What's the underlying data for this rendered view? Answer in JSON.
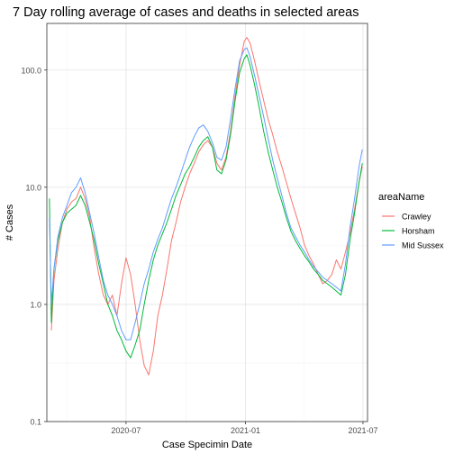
{
  "chart_data": {
    "type": "line",
    "title": "7 Day rolling average of cases and deaths in selected areas",
    "xlabel": "Case Specimin Date",
    "ylabel": "# Cases",
    "y_scale": "log10",
    "ylim": [
      0.1,
      250
    ],
    "xlim": [
      "2020-03-01",
      "2021-07-08"
    ],
    "x_ticks": [
      {
        "date": "2020-07-01",
        "label": "2020-07"
      },
      {
        "date": "2021-01-01",
        "label": "2021-01"
      },
      {
        "date": "2021-07-01",
        "label": "2021-07"
      }
    ],
    "y_ticks": [
      {
        "value": 0.1,
        "label": "0.1"
      },
      {
        "value": 1,
        "label": "1.0"
      },
      {
        "value": 10,
        "label": "10.0"
      },
      {
        "value": 100,
        "label": "100.0"
      }
    ],
    "grid": true,
    "legend": {
      "title": "areaName",
      "position": "right"
    },
    "series": [
      {
        "name": "Crawley",
        "color": "#F8766D",
        "points": [
          [
            "2020-03-08",
            0.6
          ],
          [
            "2020-03-12",
            1.6
          ],
          [
            "2020-03-18",
            3.0
          ],
          [
            "2020-03-25",
            5.0
          ],
          [
            "2020-04-01",
            6.5
          ],
          [
            "2020-04-08",
            7.5
          ],
          [
            "2020-04-15",
            8.0
          ],
          [
            "2020-04-22",
            10.0
          ],
          [
            "2020-04-29",
            8.0
          ],
          [
            "2020-05-06",
            5.5
          ],
          [
            "2020-05-13",
            3.0
          ],
          [
            "2020-05-20",
            1.8
          ],
          [
            "2020-05-27",
            1.2
          ],
          [
            "2020-06-03",
            1.0
          ],
          [
            "2020-06-10",
            1.2
          ],
          [
            "2020-06-17",
            0.8
          ],
          [
            "2020-06-24",
            1.5
          ],
          [
            "2020-07-01",
            2.5
          ],
          [
            "2020-07-08",
            1.8
          ],
          [
            "2020-07-15",
            1.0
          ],
          [
            "2020-07-22",
            0.5
          ],
          [
            "2020-07-29",
            0.3
          ],
          [
            "2020-08-05",
            0.25
          ],
          [
            "2020-08-12",
            0.4
          ],
          [
            "2020-08-19",
            0.8
          ],
          [
            "2020-08-26",
            1.2
          ],
          [
            "2020-09-02",
            2.0
          ],
          [
            "2020-09-09",
            3.5
          ],
          [
            "2020-09-16",
            5.0
          ],
          [
            "2020-09-23",
            7.5
          ],
          [
            "2020-09-30",
            10.0
          ],
          [
            "2020-10-07",
            13.0
          ],
          [
            "2020-10-14",
            16.0
          ],
          [
            "2020-10-21",
            20.0
          ],
          [
            "2020-10-28",
            23.0
          ],
          [
            "2020-11-04",
            25.0
          ],
          [
            "2020-11-11",
            22.0
          ],
          [
            "2020-11-18",
            16.0
          ],
          [
            "2020-11-25",
            14.0
          ],
          [
            "2020-12-02",
            18.0
          ],
          [
            "2020-12-09",
            30.0
          ],
          [
            "2020-12-16",
            60.0
          ],
          [
            "2020-12-23",
            110.0
          ],
          [
            "2020-12-30",
            175.0
          ],
          [
            "2021-01-03",
            190.0
          ],
          [
            "2021-01-08",
            170.0
          ],
          [
            "2021-01-15",
            120.0
          ],
          [
            "2021-01-22",
            80.0
          ],
          [
            "2021-01-29",
            55.0
          ],
          [
            "2021-02-05",
            38.0
          ],
          [
            "2021-02-12",
            28.0
          ],
          [
            "2021-02-19",
            20.0
          ],
          [
            "2021-02-26",
            15.0
          ],
          [
            "2021-03-05",
            11.0
          ],
          [
            "2021-03-12",
            8.0
          ],
          [
            "2021-03-19",
            6.0
          ],
          [
            "2021-03-26",
            4.5
          ],
          [
            "2021-04-02",
            3.2
          ],
          [
            "2021-04-09",
            2.6
          ],
          [
            "2021-04-16",
            2.2
          ],
          [
            "2021-04-23",
            1.8
          ],
          [
            "2021-04-30",
            1.5
          ],
          [
            "2021-05-07",
            1.6
          ],
          [
            "2021-05-14",
            1.8
          ],
          [
            "2021-05-21",
            2.4
          ],
          [
            "2021-05-28",
            2.0
          ],
          [
            "2021-06-04",
            2.8
          ],
          [
            "2021-06-11",
            4.0
          ],
          [
            "2021-06-18",
            6.5
          ],
          [
            "2021-06-25",
            11.0
          ],
          [
            "2021-06-30",
            15.0
          ]
        ]
      },
      {
        "name": "Horsham",
        "color": "#00BA38",
        "points": [
          [
            "2020-03-05",
            8.0
          ],
          [
            "2020-03-08",
            0.7
          ],
          [
            "2020-03-12",
            2.0
          ],
          [
            "2020-03-18",
            3.5
          ],
          [
            "2020-03-25",
            5.0
          ],
          [
            "2020-04-01",
            6.0
          ],
          [
            "2020-04-08",
            6.5
          ],
          [
            "2020-04-15",
            7.0
          ],
          [
            "2020-04-22",
            8.5
          ],
          [
            "2020-04-29",
            7.0
          ],
          [
            "2020-05-06",
            5.0
          ],
          [
            "2020-05-13",
            3.5
          ],
          [
            "2020-05-20",
            2.2
          ],
          [
            "2020-05-27",
            1.5
          ],
          [
            "2020-06-03",
            1.0
          ],
          [
            "2020-06-10",
            0.8
          ],
          [
            "2020-06-17",
            0.6
          ],
          [
            "2020-06-24",
            0.5
          ],
          [
            "2020-07-01",
            0.4
          ],
          [
            "2020-07-08",
            0.35
          ],
          [
            "2020-07-15",
            0.45
          ],
          [
            "2020-07-22",
            0.6
          ],
          [
            "2020-07-29",
            1.0
          ],
          [
            "2020-08-05",
            1.6
          ],
          [
            "2020-08-12",
            2.4
          ],
          [
            "2020-08-19",
            3.2
          ],
          [
            "2020-08-26",
            4.0
          ],
          [
            "2020-09-02",
            5.0
          ],
          [
            "2020-09-09",
            6.5
          ],
          [
            "2020-09-16",
            8.5
          ],
          [
            "2020-09-23",
            10.5
          ],
          [
            "2020-09-30",
            13.0
          ],
          [
            "2020-10-07",
            15.0
          ],
          [
            "2020-10-14",
            18.0
          ],
          [
            "2020-10-21",
            22.0
          ],
          [
            "2020-10-28",
            25.0
          ],
          [
            "2020-11-04",
            27.0
          ],
          [
            "2020-11-11",
            22.0
          ],
          [
            "2020-11-18",
            14.0
          ],
          [
            "2020-11-25",
            13.0
          ],
          [
            "2020-12-02",
            17.0
          ],
          [
            "2020-12-09",
            28.0
          ],
          [
            "2020-12-16",
            55.0
          ],
          [
            "2020-12-23",
            95.0
          ],
          [
            "2020-12-30",
            125.0
          ],
          [
            "2021-01-03",
            135.0
          ],
          [
            "2021-01-08",
            110.0
          ],
          [
            "2021-01-15",
            75.0
          ],
          [
            "2021-01-22",
            48.0
          ],
          [
            "2021-01-29",
            30.0
          ],
          [
            "2021-02-05",
            20.0
          ],
          [
            "2021-02-12",
            14.0
          ],
          [
            "2021-02-19",
            10.0
          ],
          [
            "2021-02-26",
            7.5
          ],
          [
            "2021-03-05",
            5.5
          ],
          [
            "2021-03-12",
            4.2
          ],
          [
            "2021-03-19",
            3.5
          ],
          [
            "2021-03-26",
            3.0
          ],
          [
            "2021-04-02",
            2.6
          ],
          [
            "2021-04-09",
            2.3
          ],
          [
            "2021-04-16",
            2.0
          ],
          [
            "2021-04-23",
            1.8
          ],
          [
            "2021-04-30",
            1.6
          ],
          [
            "2021-05-07",
            1.5
          ],
          [
            "2021-05-14",
            1.4
          ],
          [
            "2021-05-21",
            1.3
          ],
          [
            "2021-05-28",
            1.2
          ],
          [
            "2021-06-04",
            1.8
          ],
          [
            "2021-06-11",
            3.5
          ],
          [
            "2021-06-18",
            6.0
          ],
          [
            "2021-06-25",
            11.0
          ],
          [
            "2021-06-30",
            16.0
          ]
        ]
      },
      {
        "name": "Mid Sussex",
        "color": "#619CFF",
        "points": [
          [
            "2020-03-05",
            5.5
          ],
          [
            "2020-03-08",
            1.0
          ],
          [
            "2020-03-12",
            2.0
          ],
          [
            "2020-03-18",
            3.8
          ],
          [
            "2020-03-25",
            5.5
          ],
          [
            "2020-04-01",
            7.0
          ],
          [
            "2020-04-08",
            9.0
          ],
          [
            "2020-04-15",
            10.0
          ],
          [
            "2020-04-22",
            12.0
          ],
          [
            "2020-04-29",
            9.0
          ],
          [
            "2020-05-06",
            6.0
          ],
          [
            "2020-05-13",
            4.0
          ],
          [
            "2020-05-20",
            2.5
          ],
          [
            "2020-05-27",
            1.6
          ],
          [
            "2020-06-03",
            1.2
          ],
          [
            "2020-06-10",
            1.0
          ],
          [
            "2020-06-17",
            0.8
          ],
          [
            "2020-06-24",
            0.6
          ],
          [
            "2020-07-01",
            0.5
          ],
          [
            "2020-07-08",
            0.5
          ],
          [
            "2020-07-15",
            0.7
          ],
          [
            "2020-07-22",
            1.0
          ],
          [
            "2020-07-29",
            1.5
          ],
          [
            "2020-08-05",
            2.0
          ],
          [
            "2020-08-12",
            2.8
          ],
          [
            "2020-08-19",
            3.6
          ],
          [
            "2020-08-26",
            4.5
          ],
          [
            "2020-09-02",
            6.0
          ],
          [
            "2020-09-09",
            8.0
          ],
          [
            "2020-09-16",
            10.0
          ],
          [
            "2020-09-23",
            13.0
          ],
          [
            "2020-09-30",
            17.0
          ],
          [
            "2020-10-07",
            22.0
          ],
          [
            "2020-10-14",
            27.0
          ],
          [
            "2020-10-21",
            32.0
          ],
          [
            "2020-10-28",
            34.0
          ],
          [
            "2020-11-04",
            30.0
          ],
          [
            "2020-11-11",
            24.0
          ],
          [
            "2020-11-18",
            18.0
          ],
          [
            "2020-11-25",
            17.0
          ],
          [
            "2020-12-02",
            22.0
          ],
          [
            "2020-12-09",
            38.0
          ],
          [
            "2020-12-16",
            70.0
          ],
          [
            "2020-12-23",
            120.0
          ],
          [
            "2020-12-30",
            150.0
          ],
          [
            "2021-01-03",
            155.0
          ],
          [
            "2021-01-08",
            130.0
          ],
          [
            "2021-01-15",
            90.0
          ],
          [
            "2021-01-22",
            60.0
          ],
          [
            "2021-01-29",
            40.0
          ],
          [
            "2021-02-05",
            26.0
          ],
          [
            "2021-02-12",
            17.0
          ],
          [
            "2021-02-19",
            12.0
          ],
          [
            "2021-02-26",
            8.5
          ],
          [
            "2021-03-05",
            6.0
          ],
          [
            "2021-03-12",
            4.5
          ],
          [
            "2021-03-19",
            3.8
          ],
          [
            "2021-03-26",
            3.2
          ],
          [
            "2021-04-02",
            2.8
          ],
          [
            "2021-04-09",
            2.4
          ],
          [
            "2021-04-16",
            2.1
          ],
          [
            "2021-04-23",
            1.9
          ],
          [
            "2021-04-30",
            1.7
          ],
          [
            "2021-05-07",
            1.6
          ],
          [
            "2021-05-14",
            1.5
          ],
          [
            "2021-05-21",
            1.4
          ],
          [
            "2021-05-28",
            1.3
          ],
          [
            "2021-06-04",
            2.2
          ],
          [
            "2021-06-11",
            4.5
          ],
          [
            "2021-06-18",
            8.0
          ],
          [
            "2021-06-25",
            15.0
          ],
          [
            "2021-06-30",
            21.0
          ]
        ]
      }
    ]
  }
}
